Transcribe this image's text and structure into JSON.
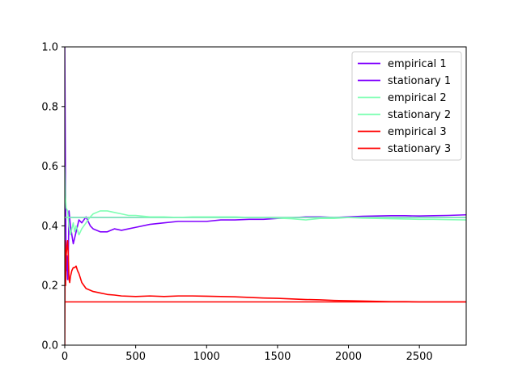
{
  "chart_data": {
    "type": "line",
    "title": "",
    "xlabel": "",
    "ylabel": "",
    "xlim": [
      0,
      2830
    ],
    "ylim": [
      0.0,
      1.0
    ],
    "x_ticks": [
      0,
      500,
      1000,
      1500,
      2000,
      2500
    ],
    "x_tick_labels": [
      "0",
      "500",
      "1000",
      "1500",
      "2000",
      "2500"
    ],
    "y_ticks": [
      0.0,
      0.2,
      0.4,
      0.6,
      0.8,
      1.0
    ],
    "y_tick_labels": [
      "0.0",
      "0.2",
      "0.4",
      "0.6",
      "0.8",
      "1.0"
    ],
    "grid": false,
    "legend_position": "top-right",
    "series": [
      {
        "name": "empirical 1",
        "color": "#8000ff",
        "kind": "empirical",
        "x": [
          0,
          5,
          10,
          15,
          20,
          25,
          30,
          40,
          50,
          60,
          70,
          80,
          100,
          120,
          150,
          180,
          200,
          250,
          300,
          350,
          400,
          450,
          500,
          600,
          700,
          800,
          900,
          1000,
          1100,
          1200,
          1300,
          1400,
          1500,
          1600,
          1700,
          1800,
          1900,
          2000,
          2100,
          2200,
          2300,
          2400,
          2500,
          2600,
          2700,
          2830
        ],
        "y": [
          1.0,
          0.55,
          0.25,
          0.3,
          0.22,
          0.3,
          0.45,
          0.4,
          0.37,
          0.34,
          0.36,
          0.38,
          0.42,
          0.41,
          0.43,
          0.4,
          0.39,
          0.38,
          0.38,
          0.39,
          0.385,
          0.39,
          0.395,
          0.405,
          0.41,
          0.415,
          0.415,
          0.415,
          0.42,
          0.42,
          0.422,
          0.422,
          0.425,
          0.427,
          0.43,
          0.43,
          0.428,
          0.43,
          0.432,
          0.433,
          0.434,
          0.434,
          0.433,
          0.434,
          0.435,
          0.437
        ]
      },
      {
        "name": "stationary 1",
        "color": "#8000ff",
        "kind": "stationary",
        "value": 0.428
      },
      {
        "name": "empirical 2",
        "color": "#80ffb4",
        "kind": "empirical",
        "x": [
          0,
          5,
          10,
          20,
          30,
          40,
          50,
          60,
          70,
          80,
          100,
          120,
          150,
          180,
          200,
          250,
          300,
          350,
          400,
          450,
          500,
          600,
          700,
          800,
          900,
          1000,
          1100,
          1200,
          1300,
          1400,
          1500,
          1600,
          1700,
          1800,
          1900,
          2000,
          2100,
          2200,
          2300,
          2400,
          2500,
          2600,
          2700,
          2830
        ],
        "y": [
          0.6,
          0.5,
          0.46,
          0.45,
          0.4,
          0.37,
          0.39,
          0.41,
          0.38,
          0.4,
          0.37,
          0.39,
          0.41,
          0.43,
          0.44,
          0.45,
          0.45,
          0.445,
          0.44,
          0.435,
          0.435,
          0.43,
          0.43,
          0.428,
          0.43,
          0.43,
          0.43,
          0.43,
          0.428,
          0.428,
          0.426,
          0.424,
          0.42,
          0.425,
          0.425,
          0.428,
          0.426,
          0.425,
          0.424,
          0.423,
          0.422,
          0.422,
          0.421,
          0.42
        ]
      },
      {
        "name": "stationary 2",
        "color": "#80ffb4",
        "kind": "stationary",
        "value": 0.428
      },
      {
        "name": "empirical 3",
        "color": "#ff0000",
        "kind": "empirical",
        "x": [
          0,
          3,
          6,
          10,
          15,
          20,
          25,
          30,
          35,
          40,
          45,
          50,
          60,
          70,
          80,
          90,
          100,
          120,
          150,
          200,
          250,
          300,
          350,
          400,
          500,
          600,
          700,
          800,
          900,
          1000,
          1100,
          1200,
          1300,
          1400,
          1500,
          1600,
          1700,
          1800,
          1900,
          2000,
          2100,
          2200,
          2300,
          2400,
          2500,
          2600,
          2700,
          2830
        ],
        "y": [
          0.0,
          0.35,
          0.2,
          0.3,
          0.33,
          0.35,
          0.3,
          0.22,
          0.21,
          0.23,
          0.24,
          0.25,
          0.26,
          0.26,
          0.265,
          0.25,
          0.24,
          0.21,
          0.19,
          0.18,
          0.175,
          0.17,
          0.168,
          0.165,
          0.163,
          0.165,
          0.163,
          0.165,
          0.165,
          0.164,
          0.163,
          0.162,
          0.16,
          0.158,
          0.157,
          0.155,
          0.153,
          0.152,
          0.15,
          0.149,
          0.148,
          0.147,
          0.146,
          0.146,
          0.145,
          0.145,
          0.145,
          0.145
        ]
      },
      {
        "name": "stationary 3",
        "color": "#ff0000",
        "kind": "stationary",
        "value": 0.145
      }
    ]
  }
}
